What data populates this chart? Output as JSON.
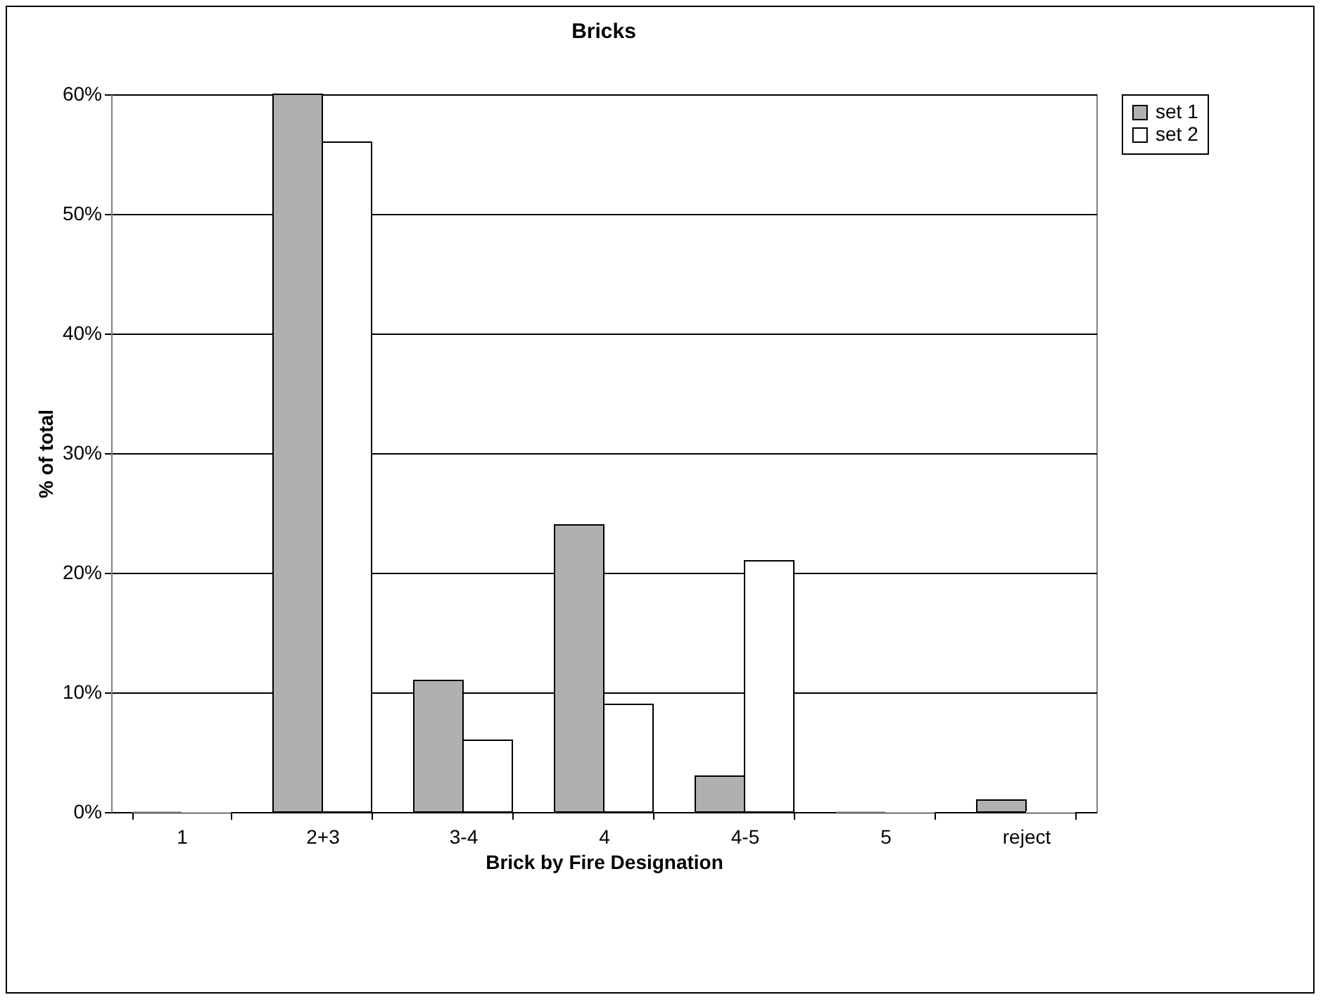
{
  "chart_data": {
    "type": "bar",
    "title": "Bricks",
    "xlabel": "Brick by Fire Designation",
    "ylabel": "% of total",
    "categories": [
      "1",
      "2+3",
      "3-4",
      "4",
      "4-5",
      "5",
      "reject"
    ],
    "series": [
      {
        "name": "set 1",
        "color": "#b0b0b0",
        "values": [
          0,
          60,
          11,
          24,
          3,
          0,
          1
        ]
      },
      {
        "name": "set 2",
        "color": "#ffffff",
        "values": [
          0,
          56,
          6,
          9,
          21,
          0,
          0
        ]
      }
    ],
    "ylim": [
      0,
      60
    ],
    "yticks": [
      {
        "value": 0,
        "label": "0%"
      },
      {
        "value": 10,
        "label": "10%"
      },
      {
        "value": 20,
        "label": "20%"
      },
      {
        "value": 30,
        "label": "30%"
      },
      {
        "value": 40,
        "label": "40%"
      },
      {
        "value": 50,
        "label": "50%"
      },
      {
        "value": 60,
        "label": "60%"
      }
    ],
    "grid": "y",
    "legend": "right"
  }
}
